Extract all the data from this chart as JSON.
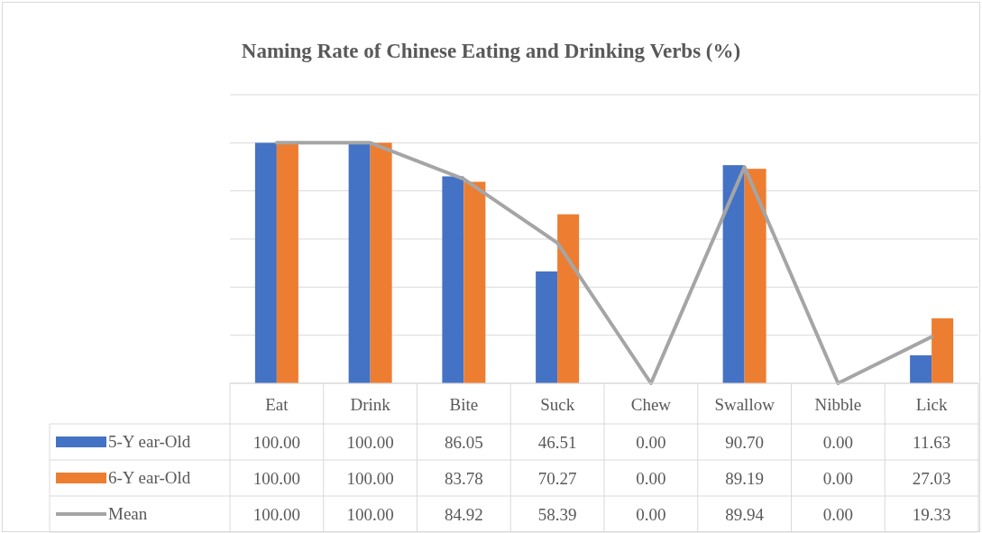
{
  "chart_data": {
    "type": "bar",
    "title": "Naming Rate of Chinese Eating and Drinking Verbs (%)",
    "categories": [
      "Eat",
      "Drink",
      "Bite",
      "Suck",
      "Chew",
      "Swallow",
      "Nibble",
      "Lick"
    ],
    "series": [
      {
        "name": "5-Y ear-Old",
        "color": "#4472c4",
        "values": [
          100,
          100,
          86.05,
          46.51,
          0,
          90.7,
          0,
          11.63
        ],
        "value_labels": [
          "100.00",
          "100.00",
          "86.05",
          "46.51",
          "0.00",
          "90.70",
          "0.00",
          "11.63"
        ]
      },
      {
        "name": "6-Y ear-Old",
        "color": "#ed7d31",
        "values": [
          100,
          100,
          83.78,
          70.27,
          0,
          89.19,
          0,
          27.03
        ],
        "value_labels": [
          "100.00",
          "100.00",
          "83.78",
          "70.27",
          "0.00",
          "89.19",
          "0.00",
          "27.03"
        ]
      },
      {
        "name": "Mean",
        "type": "line",
        "color": "#a5a5a5",
        "values": [
          100,
          100,
          84.92,
          58.39,
          0,
          89.94,
          0,
          19.33
        ],
        "value_labels": [
          "100.00",
          "100.00",
          "84.92",
          "58.39",
          "0.00",
          "89.94",
          "0.00",
          "19.33"
        ]
      }
    ],
    "ylim": [
      0,
      120
    ],
    "yticks": [
      {
        "value": 0,
        "label": null
      },
      {
        "value": 20,
        "label": null
      },
      {
        "value": 40,
        "label": null
      },
      {
        "value": 60,
        "label": null
      },
      {
        "value": 80,
        "label": null
      },
      {
        "value": 100,
        "label": null
      },
      {
        "value": 120,
        "label": null
      }
    ],
    "grid": "y",
    "tick_labels": "x",
    "legend": "bottom",
    "marker": "none",
    "line_style": "solid"
  }
}
